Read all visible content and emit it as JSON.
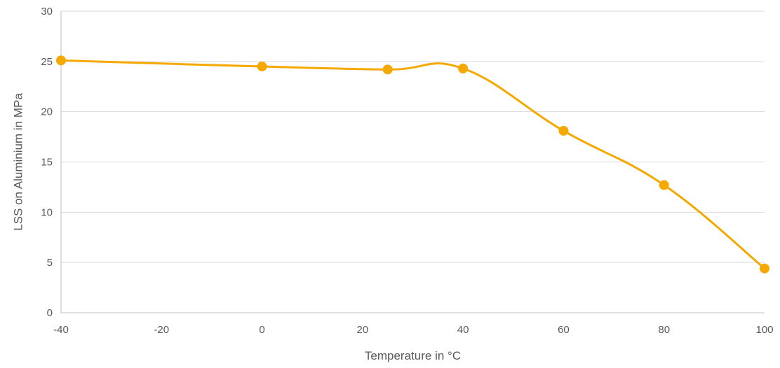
{
  "chart_data": {
    "type": "line",
    "title": "",
    "xlabel": "Temperature in °C",
    "ylabel": "LSS on Aluminium in MPa",
    "xlim": [
      -40,
      100
    ],
    "ylim": [
      0,
      30
    ],
    "x_ticks": [
      "-40",
      "-20",
      "0",
      "20",
      "40",
      "60",
      "80",
      "100"
    ],
    "x_tick_values": [
      -40,
      -20,
      0,
      20,
      40,
      60,
      80,
      100
    ],
    "y_ticks": [
      "0",
      "5",
      "10",
      "15",
      "20",
      "25",
      "30"
    ],
    "y_tick_values": [
      0,
      5,
      10,
      15,
      20,
      25,
      30
    ],
    "grid": true,
    "smooth": true,
    "series": [
      {
        "color": "#F5A800",
        "x": [
          -40,
          0,
          25,
          40,
          60,
          80,
          100
        ],
        "y": [
          25.1,
          24.5,
          24.2,
          24.3,
          18.1,
          12.7,
          4.4
        ]
      }
    ]
  }
}
